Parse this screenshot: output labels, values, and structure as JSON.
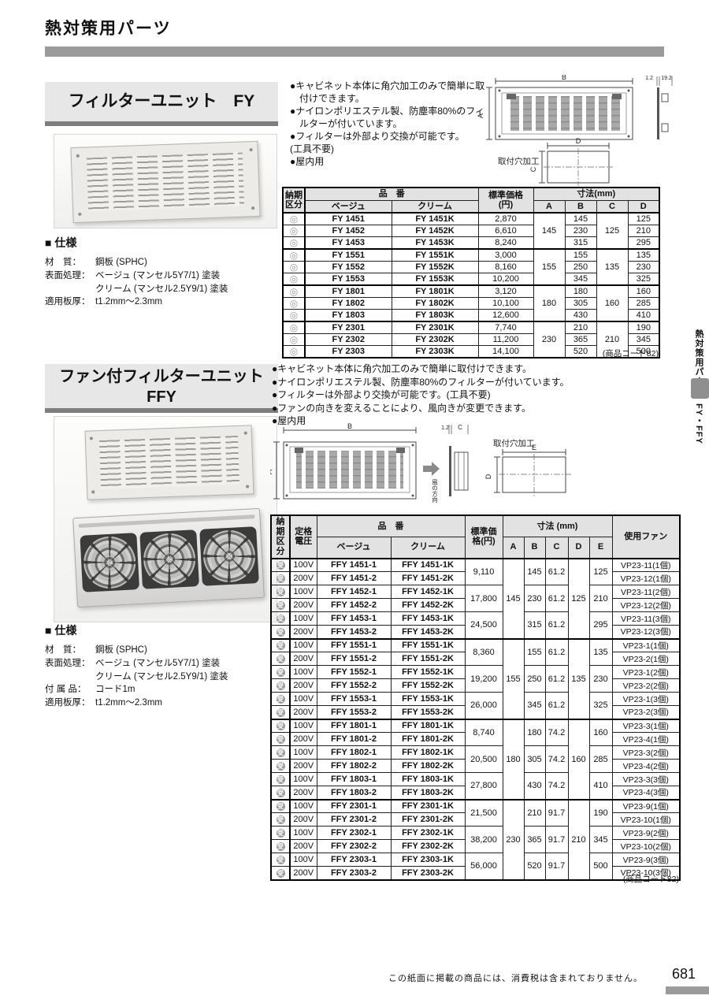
{
  "page": {
    "header_title": "熱対策用パーツ",
    "side_tab": {
      "category": "熱対策用パーツ",
      "models": "FY・FFY"
    },
    "footer_note": "この紙面に掲載の商品には、消費税は含まれておりません。",
    "page_number": "681"
  },
  "fy": {
    "title": "フィルターユニット　FY",
    "bullets": [
      "●キャビネット本体に角穴加工のみで簡単に取付けできます。",
      "●ナイロンポリエステル製、防塵率80%のフィルターが付いています。",
      "●フィルターは外部より交換が可能です。",
      "(工具不要)",
      "●屋内用"
    ],
    "specs_title": "■ 仕様",
    "specs": [
      {
        "label": "材　質：",
        "value": "鋼板 (SPHC)"
      },
      {
        "label": "表面処理：",
        "value": "ベージュ (マンセル5Y7/1) 塗装"
      },
      {
        "label": "",
        "value": "クリーム (マンセル2.5Y9/1) 塗装"
      },
      {
        "label": "適用板厚：",
        "value": "t1.2mm〜2.3mm"
      }
    ],
    "diagram": {
      "dim_b": "B",
      "dim_a": "A",
      "thickness": "1.2",
      "depth": "19.2",
      "hole_label": "取付穴加工",
      "dim_d": "D",
      "dim_c": "C"
    },
    "table": {
      "h_delivery": "納期区分",
      "h_part": "品　番",
      "h_beige": "ベージュ",
      "h_cream": "クリーム",
      "h_price": "標準価格(円)",
      "h_dims": "寸法(mm)",
      "h_a": "A",
      "h_b": "B",
      "h_c": "C",
      "h_d": "D",
      "symbol": "◎",
      "symbol_class": "maru",
      "rows": [
        {
          "g": true,
          "c": [
            "FY 1451",
            "FY 1451K",
            "2,870",
            [
              "145",
              3
            ],
            "145",
            [
              "125",
              3
            ],
            "125"
          ]
        },
        {
          "c": [
            "FY 1452",
            "FY 1452K",
            "6,610",
            "230",
            "210"
          ]
        },
        {
          "c": [
            "FY 1453",
            "FY 1453K",
            "8,240",
            "315",
            "295"
          ]
        },
        {
          "g": true,
          "c": [
            "FY 1551",
            "FY 1551K",
            "3,000",
            [
              "155",
              3
            ],
            "155",
            [
              "135",
              3
            ],
            "135"
          ]
        },
        {
          "c": [
            "FY 1552",
            "FY 1552K",
            "8,160",
            "250",
            "230"
          ]
        },
        {
          "c": [
            "FY 1553",
            "FY 1553K",
            "10,200",
            "345",
            "325"
          ]
        },
        {
          "g": true,
          "c": [
            "FY 1801",
            "FY 1801K",
            "3,120",
            [
              "180",
              3
            ],
            "180",
            [
              "160",
              3
            ],
            "160"
          ]
        },
        {
          "c": [
            "FY 1802",
            "FY 1802K",
            "10,100",
            "305",
            "285"
          ]
        },
        {
          "c": [
            "FY 1803",
            "FY 1803K",
            "12,600",
            "430",
            "410"
          ]
        },
        {
          "g": true,
          "c": [
            "FY 2301",
            "FY 2301K",
            "7,740",
            [
              "230",
              3
            ],
            "210",
            [
              "210",
              3
            ],
            "190"
          ]
        },
        {
          "c": [
            "FY 2302",
            "FY 2302K",
            "11,200",
            "365",
            "345"
          ]
        },
        {
          "c": [
            "FY 2303",
            "FY 2303K",
            "14,100",
            "520",
            "500"
          ]
        }
      ]
    },
    "product_code": "(商品コード82)"
  },
  "ffy": {
    "title": "ファン付フィルターユニット\nFFY",
    "bullets": [
      "●キャビネット本体に角穴加工のみで簡単に取付けできます。",
      "●ナイロンポリエステル製、防塵率80%のフィルターが付いています。",
      "●フィルターは外部より交換が可能です。(工具不要)",
      "●ファンの向きを変えることにより、風向きが変更できます。",
      "●屋内用"
    ],
    "specs_title": "■ 仕様",
    "specs": [
      {
        "label": "材　質：",
        "value": "鋼板 (SPHC)"
      },
      {
        "label": "表面処理：",
        "value": "ベージュ (マンセル5Y7/1) 塗装"
      },
      {
        "label": "",
        "value": "クリーム (マンセル2.5Y9/1) 塗装"
      },
      {
        "label": "付 属 品：",
        "value": "コード1m"
      },
      {
        "label": "適用板厚：",
        "value": "t1.2mm〜2.3mm"
      }
    ],
    "diagram": {
      "dim_b": "B",
      "dim_a": "A",
      "thickness": "1.2",
      "dim_c": "C",
      "wind": "風の方向",
      "hole_label": "取付穴加工",
      "dim_e": "E",
      "dim_d": "D"
    },
    "table": {
      "h_delivery": "納期区分",
      "h_voltage": "定格電圧",
      "h_part": "品　番",
      "h_beige": "ベージュ",
      "h_cream": "クリーム",
      "h_price": "標準価格(円)",
      "h_dims": "寸法 (mm)",
      "h_a": "A",
      "h_b": "B",
      "h_c": "C",
      "h_d": "D",
      "h_e": "E",
      "h_fan": "使用ファン",
      "symbol": "受",
      "symbol_class": "jyu",
      "rows": [
        {
          "g": true,
          "c": [
            "100V",
            "FFY 1451-1",
            "FFY 1451-1K",
            [
              "9,110",
              2
            ],
            [
              "145",
              6
            ],
            [
              "145",
              2
            ],
            [
              "61.2",
              2
            ],
            [
              "125",
              6
            ],
            [
              "125",
              2
            ],
            "VP23-11(1個)"
          ]
        },
        {
          "c": [
            "200V",
            "FFY 1451-2",
            "FFY 1451-2K",
            "VP23-12(1個)"
          ]
        },
        {
          "c": [
            "100V",
            "FFY 1452-1",
            "FFY 1452-1K",
            [
              "17,800",
              2
            ],
            [
              "230",
              2
            ],
            [
              "61.2",
              2
            ],
            [
              "210",
              2
            ],
            "VP23-11(2個)"
          ]
        },
        {
          "c": [
            "200V",
            "FFY 1452-2",
            "FFY 1452-2K",
            "VP23-12(2個)"
          ]
        },
        {
          "c": [
            "100V",
            "FFY 1453-1",
            "FFY 1453-1K",
            [
              "24,500",
              2
            ],
            [
              "315",
              2
            ],
            [
              "61.2",
              2
            ],
            [
              "295",
              2
            ],
            "VP23-11(3個)"
          ]
        },
        {
          "c": [
            "200V",
            "FFY 1453-2",
            "FFY 1453-2K",
            "VP23-12(3個)"
          ]
        },
        {
          "g": true,
          "c": [
            "100V",
            "FFY 1551-1",
            "FFY 1551-1K",
            [
              "8,360",
              2
            ],
            [
              "155",
              6
            ],
            [
              "155",
              2
            ],
            [
              "61.2",
              2
            ],
            [
              "135",
              6
            ],
            [
              "135",
              2
            ],
            "VP23-1(1個)"
          ]
        },
        {
          "c": [
            "200V",
            "FFY 1551-2",
            "FFY 1551-2K",
            "VP23-2(1個)"
          ]
        },
        {
          "c": [
            "100V",
            "FFY 1552-1",
            "FFY 1552-1K",
            [
              "19,200",
              2
            ],
            [
              "250",
              2
            ],
            [
              "61.2",
              2
            ],
            [
              "230",
              2
            ],
            "VP23-1(2個)"
          ]
        },
        {
          "c": [
            "200V",
            "FFY 1552-2",
            "FFY 1552-2K",
            "VP23-2(2個)"
          ]
        },
        {
          "c": [
            "100V",
            "FFY 1553-1",
            "FFY 1553-1K",
            [
              "26,000",
              2
            ],
            [
              "345",
              2
            ],
            [
              "61.2",
              2
            ],
            [
              "325",
              2
            ],
            "VP23-1(3個)"
          ]
        },
        {
          "c": [
            "200V",
            "FFY 1553-2",
            "FFY 1553-2K",
            "VP23-2(3個)"
          ]
        },
        {
          "g": true,
          "c": [
            "100V",
            "FFY 1801-1",
            "FFY 1801-1K",
            [
              "8,740",
              2
            ],
            [
              "180",
              6
            ],
            [
              "180",
              2
            ],
            [
              "74.2",
              2
            ],
            [
              "160",
              6
            ],
            [
              "160",
              2
            ],
            "VP23-3(1個)"
          ]
        },
        {
          "c": [
            "200V",
            "FFY 1801-2",
            "FFY 1801-2K",
            "VP23-4(1個)"
          ]
        },
        {
          "c": [
            "100V",
            "FFY 1802-1",
            "FFY 1802-1K",
            [
              "20,500",
              2
            ],
            [
              "305",
              2
            ],
            [
              "74.2",
              2
            ],
            [
              "285",
              2
            ],
            "VP23-3(2個)"
          ]
        },
        {
          "c": [
            "200V",
            "FFY 1802-2",
            "FFY 1802-2K",
            "VP23-4(2個)"
          ]
        },
        {
          "c": [
            "100V",
            "FFY 1803-1",
            "FFY 1803-1K",
            [
              "27,800",
              2
            ],
            [
              "430",
              2
            ],
            [
              "74.2",
              2
            ],
            [
              "410",
              2
            ],
            "VP23-3(3個)"
          ]
        },
        {
          "c": [
            "200V",
            "FFY 1803-2",
            "FFY 1803-2K",
            "VP23-4(3個)"
          ]
        },
        {
          "g": true,
          "c": [
            "100V",
            "FFY 2301-1",
            "FFY 2301-1K",
            [
              "21,500",
              2
            ],
            [
              "230",
              6
            ],
            [
              "210",
              2
            ],
            [
              "91.7",
              2
            ],
            [
              "210",
              6
            ],
            [
              "190",
              2
            ],
            "VP23-9(1個)"
          ]
        },
        {
          "c": [
            "200V",
            "FFY 2301-2",
            "FFY 2301-2K",
            "VP23-10(1個)"
          ]
        },
        {
          "c": [
            "100V",
            "FFY 2302-1",
            "FFY 2302-1K",
            [
              "38,200",
              2
            ],
            [
              "365",
              2
            ],
            [
              "91.7",
              2
            ],
            [
              "345",
              2
            ],
            "VP23-9(2個)"
          ]
        },
        {
          "c": [
            "200V",
            "FFY 2302-2",
            "FFY 2302-2K",
            "VP23-10(2個)"
          ]
        },
        {
          "c": [
            "100V",
            "FFY 2303-1",
            "FFY 2303-1K",
            [
              "56,000",
              2
            ],
            [
              "520",
              2
            ],
            [
              "91.7",
              2
            ],
            [
              "500",
              2
            ],
            "VP23-9(3個)"
          ]
        },
        {
          "c": [
            "200V",
            "FFY 2303-2",
            "FFY 2303-2K",
            "VP23-10(3個)"
          ]
        }
      ]
    },
    "product_code": "(商品コード82)"
  }
}
